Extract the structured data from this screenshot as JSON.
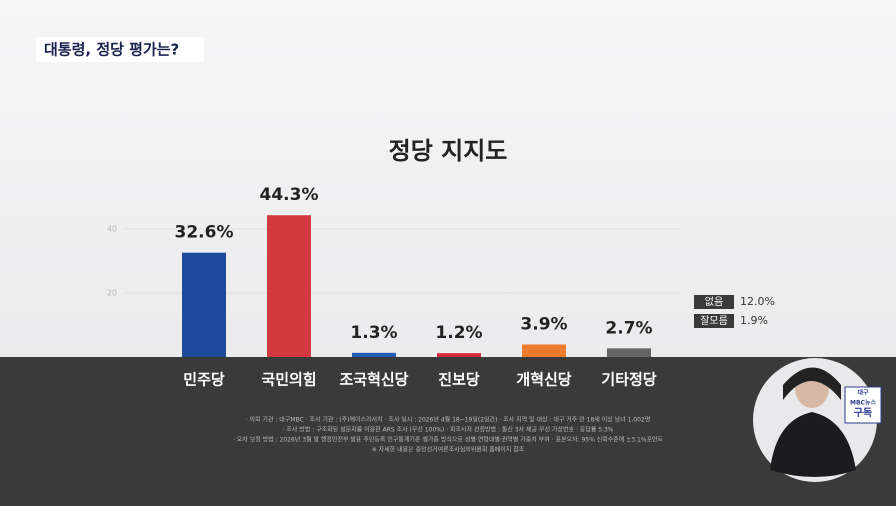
{
  "header": {
    "title": "대통령, 정당 평가는?"
  },
  "chart_data": {
    "type": "bar",
    "title": "정당 지지도",
    "categories": [
      "민주당",
      "국민의힘",
      "조국혁신당",
      "진보당",
      "개혁신당",
      "기타정당"
    ],
    "values": [
      32.6,
      44.3,
      1.3,
      1.2,
      3.9,
      2.7
    ],
    "value_labels": [
      "32.6%",
      "44.3%",
      "1.3%",
      "1.2%",
      "3.9%",
      "2.7%"
    ],
    "colors": [
      "#1d4b9c",
      "#d23a40",
      "#1f5fb4",
      "#d22a3a",
      "#ee7a2e",
      "#646464"
    ],
    "ylim": [
      0,
      50
    ],
    "yticks": [
      20,
      40
    ],
    "grid": true,
    "others": [
      {
        "name": "없음",
        "value": 12.0,
        "value_label": "12.0%"
      },
      {
        "name": "잘모름",
        "value": 1.9,
        "value_label": "1.9%"
      }
    ]
  },
  "footnotes": [
    "· 의뢰 기관 : 대구MBC · 조사 기관 : (주)에이스리서치 · 조사 일시 : 2026년 4월 18~19일(2일간) · 조사 지역 및 대상 : 대구 거주 만 18세 이상 남녀 1,002명",
    "· 조사 방법 : 구조화된 설문지를 이용한 ARS 조사 (무선 100%) · 피조사자 선정방법 : 통신 3사 제공 무선 가상번호 · 응답률 5.3%",
    "· 오차 보정 방법 : 2026년 3월 말 행정안전부 발표 주민등록 인구통계기준 셀가중 방식으로 성별·연령대별·권역별 가중치 부여 · 표본오차: 95% 신뢰수준에 ±3.1%포인트",
    "※ 자세한 내용은 중앙선거여론조사심의위원회 홈페이지 참조"
  ],
  "badge": [
    "대구",
    "MBC뉴스",
    "구독"
  ]
}
